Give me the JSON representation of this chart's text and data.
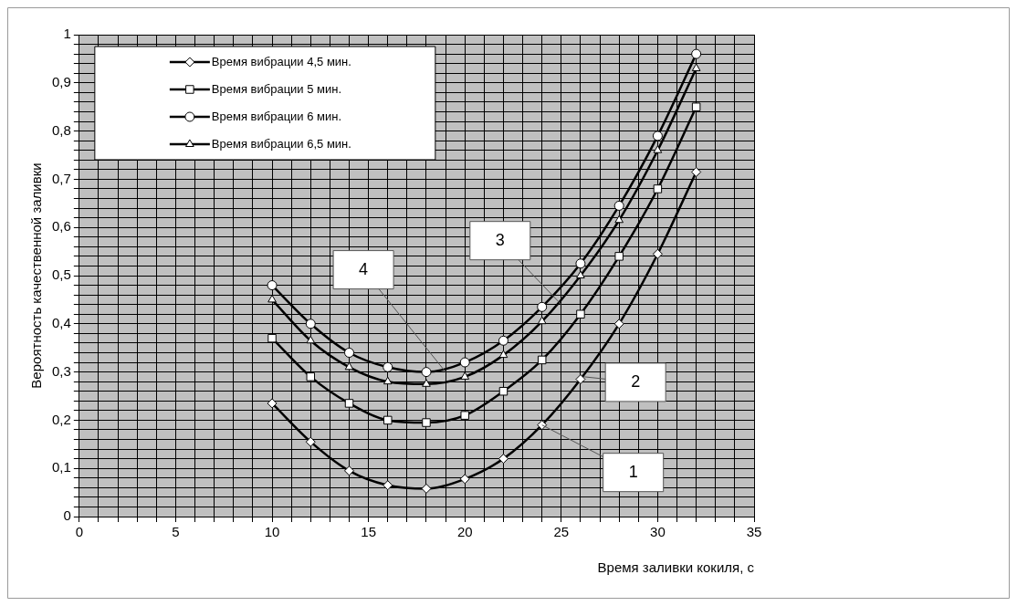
{
  "chart_data": {
    "type": "line",
    "xlabel": "Время заливки кокиля, с",
    "ylabel": "Вероятность качественной заливки",
    "x": [
      10,
      12,
      14,
      16,
      18,
      20,
      22,
      24,
      26,
      28,
      30,
      32
    ],
    "series": [
      {
        "name": "Время вибрации 4,5 мин.",
        "color": "#000000",
        "marker": "diamond",
        "values": [
          0.235,
          0.155,
          0.095,
          0.065,
          0.058,
          0.078,
          0.12,
          0.19,
          0.285,
          0.4,
          0.545,
          0.715
        ]
      },
      {
        "name": "Время вибрации 5 мин.",
        "color": "#000000",
        "marker": "square",
        "values": [
          0.37,
          0.29,
          0.235,
          0.2,
          0.195,
          0.21,
          0.26,
          0.325,
          0.42,
          0.54,
          0.68,
          0.85
        ]
      },
      {
        "name": "Время вибрации 6 мин.",
        "color": "#000000",
        "marker": "circle",
        "values": [
          0.48,
          0.4,
          0.34,
          0.31,
          0.3,
          0.32,
          0.365,
          0.435,
          0.525,
          0.645,
          0.79,
          0.96
        ]
      },
      {
        "name": "Время вибрации 6,5 мин.",
        "color": "#000000",
        "marker": "triangle",
        "values": [
          0.45,
          0.365,
          0.31,
          0.28,
          0.275,
          0.29,
          0.335,
          0.405,
          0.5,
          0.615,
          0.76,
          0.93
        ]
      }
    ],
    "xlim": [
      0,
      35
    ],
    "xticks": [
      0,
      {
        "value": 1,
        "label": null
      },
      {
        "value": 2,
        "label": null
      },
      {
        "value": 3,
        "label": null
      },
      {
        "value": 4,
        "label": null
      },
      5,
      {
        "value": 6,
        "label": null
      },
      {
        "value": 7,
        "label": null
      },
      {
        "value": 8,
        "label": null
      },
      {
        "value": 9,
        "label": null
      },
      10,
      {
        "value": 11,
        "label": null
      },
      {
        "value": 12,
        "label": null
      },
      {
        "value": 13,
        "label": null
      },
      {
        "value": 14,
        "label": null
      },
      15,
      {
        "value": 16,
        "label": null
      },
      {
        "value": 17,
        "label": null
      },
      {
        "value": 18,
        "label": null
      },
      {
        "value": 19,
        "label": null
      },
      20,
      {
        "value": 21,
        "label": null
      },
      {
        "value": 22,
        "label": null
      },
      {
        "value": 23,
        "label": null
      },
      {
        "value": 24,
        "label": null
      },
      25,
      {
        "value": 26,
        "label": null
      },
      {
        "value": 27,
        "label": null
      },
      {
        "value": 28,
        "label": null
      },
      {
        "value": 29,
        "label": null
      },
      30,
      {
        "value": 31,
        "label": null
      },
      {
        "value": 32,
        "label": null
      },
      {
        "value": 33,
        "label": null
      },
      {
        "value": 34,
        "label": null
      },
      35
    ],
    "ylim": [
      0,
      1
    ],
    "yticks": [
      0,
      {
        "value": 0.02,
        "label": null
      },
      {
        "value": 0.04,
        "label": null
      },
      {
        "value": 0.06,
        "label": null
      },
      {
        "value": 0.08,
        "label": null
      },
      {
        "value": 0.1,
        "label": "0,1"
      },
      {
        "value": 0.12,
        "label": null
      },
      {
        "value": 0.14,
        "label": null
      },
      {
        "value": 0.16,
        "label": null
      },
      {
        "value": 0.18,
        "label": null
      },
      {
        "value": 0.2,
        "label": "0,2"
      },
      {
        "value": 0.22,
        "label": null
      },
      {
        "value": 0.24,
        "label": null
      },
      {
        "value": 0.26,
        "label": null
      },
      {
        "value": 0.28,
        "label": null
      },
      {
        "value": 0.3,
        "label": "0,3"
      },
      {
        "value": 0.32,
        "label": null
      },
      {
        "value": 0.34,
        "label": null
      },
      {
        "value": 0.36,
        "label": null
      },
      {
        "value": 0.38,
        "label": null
      },
      {
        "value": 0.4,
        "label": "0,4"
      },
      {
        "value": 0.42,
        "label": null
      },
      {
        "value": 0.44,
        "label": null
      },
      {
        "value": 0.46,
        "label": null
      },
      {
        "value": 0.48,
        "label": null
      },
      {
        "value": 0.5,
        "label": "0,5"
      },
      {
        "value": 0.52,
        "label": null
      },
      {
        "value": 0.54,
        "label": null
      },
      {
        "value": 0.56,
        "label": null
      },
      {
        "value": 0.58,
        "label": null
      },
      {
        "value": 0.6,
        "label": "0,6"
      },
      {
        "value": 0.62,
        "label": null
      },
      {
        "value": 0.64,
        "label": null
      },
      {
        "value": 0.66,
        "label": null
      },
      {
        "value": 0.68,
        "label": null
      },
      {
        "value": 0.7,
        "label": "0,7"
      },
      {
        "value": 0.72,
        "label": null
      },
      {
        "value": 0.74,
        "label": null
      },
      {
        "value": 0.76,
        "label": null
      },
      {
        "value": 0.78,
        "label": null
      },
      {
        "value": 0.8,
        "label": "0,8"
      },
      {
        "value": 0.82,
        "label": null
      },
      {
        "value": 0.84,
        "label": null
      },
      {
        "value": 0.86,
        "label": null
      },
      {
        "value": 0.88,
        "label": null
      },
      {
        "value": 0.9,
        "label": "0,9"
      },
      {
        "value": 0.92,
        "label": null
      },
      {
        "value": 0.94,
        "label": null
      },
      {
        "value": 0.96,
        "label": null
      },
      {
        "value": 0.98,
        "label": null
      },
      1
    ],
    "grid": true,
    "legend": "top left",
    "line_style": "solid",
    "annotations": [
      {
        "text": "1",
        "x": 24,
        "y": 0.19
      },
      {
        "text": "2",
        "x": 26.2,
        "y": 0.29
      },
      {
        "text": "3",
        "x": 25,
        "y": 0.44
      },
      {
        "text": "4",
        "x": 19,
        "y": 0.3
      }
    ]
  }
}
